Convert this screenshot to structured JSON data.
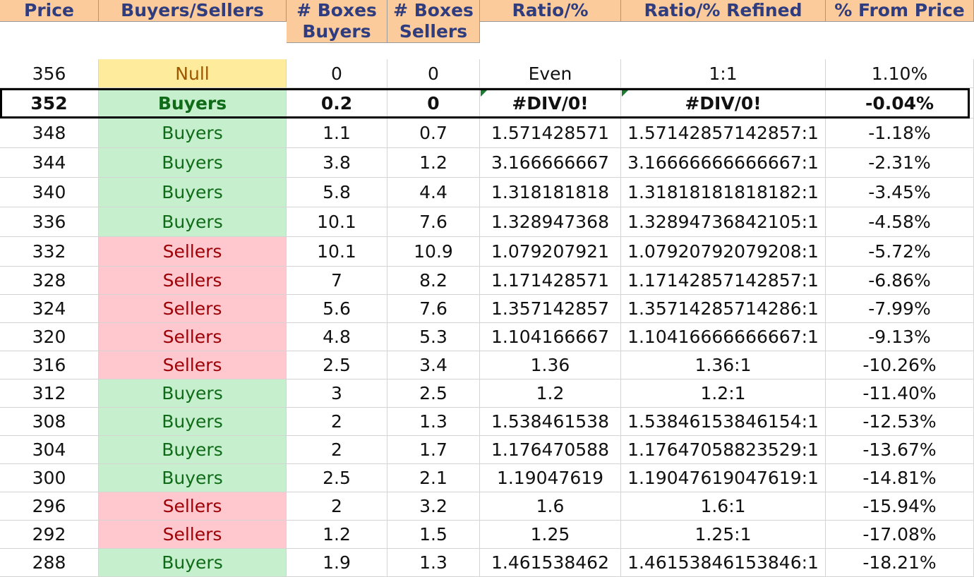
{
  "headers": [
    "Price",
    "Buyers/Sellers",
    "# Boxes Buyers",
    "# Boxes Sellers",
    "Ratio/%",
    "Ratio/% Refined",
    "% From Price"
  ],
  "colors": {
    "header_bg": "#fbcb9c",
    "header_text": "#2f3d7e",
    "buyers_bg": "#c6efce",
    "buyers_text": "#0f6b17",
    "sellers_bg": "#ffc7ce",
    "sellers_text": "#9c0006",
    "null_bg": "#ffeb9c",
    "null_text": "#9c5700",
    "error_indicator": "#1e7b34"
  },
  "rows": [
    {
      "price": "356",
      "side": "Null",
      "boxes_buyers": "0",
      "boxes_sellers": "0",
      "ratio": "Even",
      "ratio_refined": "1:1",
      "pct_from_price": "1.10%"
    },
    {
      "price": "352",
      "side": "Buyers",
      "boxes_buyers": "0.2",
      "boxes_sellers": "0",
      "ratio": "#DIV/0!",
      "ratio_refined": "#DIV/0!",
      "pct_from_price": "-0.04%",
      "current": true
    },
    {
      "price": "348",
      "side": "Buyers",
      "boxes_buyers": "1.1",
      "boxes_sellers": "0.7",
      "ratio": "1.571428571",
      "ratio_refined": "1.57142857142857:1",
      "pct_from_price": "-1.18%"
    },
    {
      "price": "344",
      "side": "Buyers",
      "boxes_buyers": "3.8",
      "boxes_sellers": "1.2",
      "ratio": "3.166666667",
      "ratio_refined": "3.16666666666667:1",
      "pct_from_price": "-2.31%"
    },
    {
      "price": "340",
      "side": "Buyers",
      "boxes_buyers": "5.8",
      "boxes_sellers": "4.4",
      "ratio": "1.318181818",
      "ratio_refined": "1.31818181818182:1",
      "pct_from_price": "-3.45%"
    },
    {
      "price": "336",
      "side": "Buyers",
      "boxes_buyers": "10.1",
      "boxes_sellers": "7.6",
      "ratio": "1.328947368",
      "ratio_refined": "1.32894736842105:1",
      "pct_from_price": "-4.58%"
    },
    {
      "price": "332",
      "side": "Sellers",
      "boxes_buyers": "10.1",
      "boxes_sellers": "10.9",
      "ratio": "1.079207921",
      "ratio_refined": "1.07920792079208:1",
      "pct_from_price": "-5.72%"
    },
    {
      "price": "328",
      "side": "Sellers",
      "boxes_buyers": "7",
      "boxes_sellers": "8.2",
      "ratio": "1.171428571",
      "ratio_refined": "1.17142857142857:1",
      "pct_from_price": "-6.86%"
    },
    {
      "price": "324",
      "side": "Sellers",
      "boxes_buyers": "5.6",
      "boxes_sellers": "7.6",
      "ratio": "1.357142857",
      "ratio_refined": "1.35714285714286:1",
      "pct_from_price": "-7.99%"
    },
    {
      "price": "320",
      "side": "Sellers",
      "boxes_buyers": "4.8",
      "boxes_sellers": "5.3",
      "ratio": "1.104166667",
      "ratio_refined": "1.10416666666667:1",
      "pct_from_price": "-9.13%"
    },
    {
      "price": "316",
      "side": "Sellers",
      "boxes_buyers": "2.5",
      "boxes_sellers": "3.4",
      "ratio": "1.36",
      "ratio_refined": "1.36:1",
      "pct_from_price": "-10.26%"
    },
    {
      "price": "312",
      "side": "Buyers",
      "boxes_buyers": "3",
      "boxes_sellers": "2.5",
      "ratio": "1.2",
      "ratio_refined": "1.2:1",
      "pct_from_price": "-11.40%"
    },
    {
      "price": "308",
      "side": "Buyers",
      "boxes_buyers": "2",
      "boxes_sellers": "1.3",
      "ratio": "1.538461538",
      "ratio_refined": "1.53846153846154:1",
      "pct_from_price": "-12.53%"
    },
    {
      "price": "304",
      "side": "Buyers",
      "boxes_buyers": "2",
      "boxes_sellers": "1.7",
      "ratio": "1.176470588",
      "ratio_refined": "1.17647058823529:1",
      "pct_from_price": "-13.67%"
    },
    {
      "price": "300",
      "side": "Buyers",
      "boxes_buyers": "2.5",
      "boxes_sellers": "2.1",
      "ratio": "1.19047619",
      "ratio_refined": "1.19047619047619:1",
      "pct_from_price": "-14.81%"
    },
    {
      "price": "296",
      "side": "Sellers",
      "boxes_buyers": "2",
      "boxes_sellers": "3.2",
      "ratio": "1.6",
      "ratio_refined": "1.6:1",
      "pct_from_price": "-15.94%"
    },
    {
      "price": "292",
      "side": "Sellers",
      "boxes_buyers": "1.2",
      "boxes_sellers": "1.5",
      "ratio": "1.25",
      "ratio_refined": "1.25:1",
      "pct_from_price": "-17.08%"
    },
    {
      "price": "288",
      "side": "Buyers",
      "boxes_buyers": "1.9",
      "boxes_sellers": "1.3",
      "ratio": "1.461538462",
      "ratio_refined": "1.46153846153846:1",
      "pct_from_price": "-18.21%"
    }
  ]
}
